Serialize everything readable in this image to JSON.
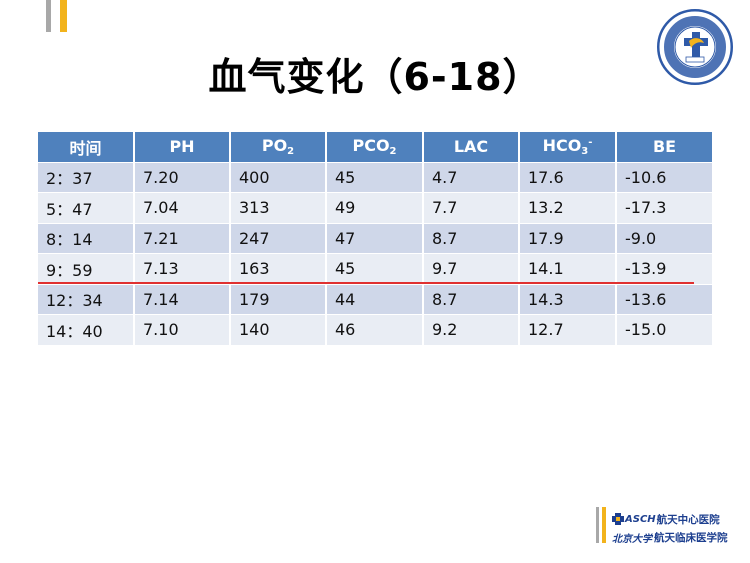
{
  "title": "血气变化（6-18）",
  "logo": {
    "year": "1958",
    "top_text": "航天中心医院",
    "bottom_text": "AEROSPACE CENTER HOSPITAL"
  },
  "table": {
    "headers": [
      {
        "main": "时间",
        "sub": "",
        "sup": ""
      },
      {
        "main": "PH",
        "sub": "",
        "sup": ""
      },
      {
        "main": "PO",
        "sub": "2",
        "sup": ""
      },
      {
        "main": "PCO",
        "sub": "2",
        "sup": ""
      },
      {
        "main": "LAC",
        "sub": "",
        "sup": ""
      },
      {
        "main": "HCO",
        "sub": "3",
        "sup": "-"
      },
      {
        "main": "BE",
        "sub": "",
        "sup": ""
      }
    ],
    "rows": [
      [
        "2：37",
        "7.20",
        "400",
        "45",
        "4.7",
        "17.6",
        "-10.6"
      ],
      [
        "5：47",
        "7.04",
        "313",
        "49",
        "7.7",
        "13.2",
        "-17.3"
      ],
      [
        "8：14",
        "7.21",
        "247",
        "47",
        "8.7",
        "17.9",
        "-9.0"
      ],
      [
        "9：59",
        "7.13",
        "163",
        "45",
        "9.7",
        "14.1",
        "-13.9"
      ],
      [
        "12：34",
        "7.14",
        "179",
        "44",
        "8.7",
        "14.3",
        "-13.6"
      ],
      [
        "14：40",
        "7.10",
        "140",
        "46",
        "9.2",
        "12.7",
        "-15.0"
      ]
    ]
  },
  "footer": {
    "line1_brand": "ASCH",
    "line1_text": "航天中心医院",
    "line2_brand": "北京大学",
    "line2_text": "航天临床医学院"
  },
  "colors": {
    "header_bg": "#4f81bd",
    "row_odd": "#cfd7e9",
    "row_even": "#e9edf4",
    "red_line": "#e03030",
    "accent_gold": "#f2b31c"
  }
}
